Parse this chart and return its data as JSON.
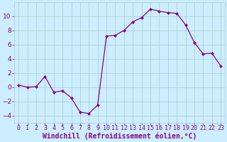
{
  "x": [
    0,
    1,
    2,
    3,
    4,
    5,
    6,
    7,
    8,
    9,
    10,
    11,
    12,
    13,
    14,
    15,
    16,
    17,
    18,
    19,
    20,
    21,
    22,
    23
  ],
  "y": [
    0.3,
    0.0,
    0.1,
    1.5,
    -0.7,
    -0.5,
    -1.5,
    -3.5,
    -3.7,
    -2.5,
    7.2,
    7.3,
    8.0,
    9.2,
    9.8,
    11.0,
    10.7,
    10.5,
    10.4,
    8.8,
    6.3,
    4.7,
    4.8,
    3.0
  ],
  "line_color": "#880088",
  "marker": "D",
  "marker_size": 2.0,
  "xlabel": "Windchill (Refroidissement éolien,°C)",
  "xlabel_fontsize": 7,
  "bg_color": "#cceeff",
  "grid_color": "#aacccc",
  "tick_color": "#880088",
  "label_color": "#880088",
  "ylim": [
    -5,
    12
  ],
  "xlim": [
    -0.5,
    23.5
  ],
  "yticks": [
    -4,
    -2,
    0,
    2,
    4,
    6,
    8,
    10
  ],
  "xticks": [
    0,
    1,
    2,
    3,
    4,
    5,
    6,
    7,
    8,
    9,
    10,
    11,
    12,
    13,
    14,
    15,
    16,
    17,
    18,
    19,
    20,
    21,
    22,
    23
  ],
  "tick_fontsize": 6,
  "ytick_fontsize": 6.5
}
